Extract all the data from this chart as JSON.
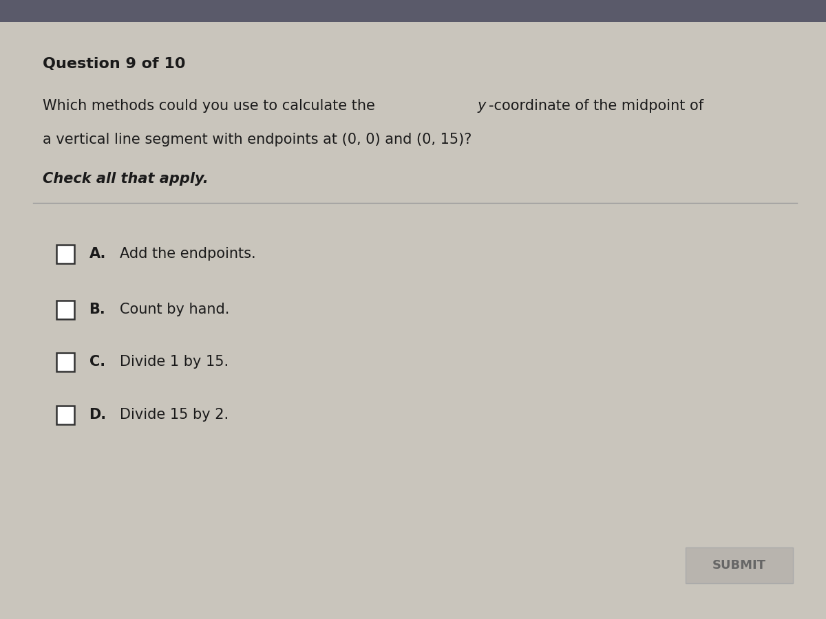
{
  "background_color": "#c9c5bc",
  "top_bar_color": "#5a5a6a",
  "content_bg": "#d4cfc6",
  "title": "Question 9 of 10",
  "question_line1_pre": "Which methods could you use to calculate the ",
  "question_y_word": "y",
  "question_line1_post": "-coordinate of the midpoint of",
  "question_line2": "a vertical line segment with endpoints at (0, 0) and (0, 15)?",
  "instruction": "Check all that apply.",
  "options": [
    {
      "letter": "A.",
      "text": "Add the endpoints."
    },
    {
      "letter": "B.",
      "text": "Count by hand."
    },
    {
      "letter": "C.",
      "text": "Divide 1 by 15."
    },
    {
      "letter": "D.",
      "text": "Divide 15 by 2."
    }
  ],
  "submit_label": "SUBMIT",
  "title_fontsize": 16,
  "question_fontsize": 15,
  "instruction_fontsize": 15,
  "option_fontsize": 15,
  "submit_fontsize": 13,
  "text_color": "#1a1a1a",
  "submit_bg": "#b8b4ae",
  "submit_text_color": "#666666",
  "separator_color": "#999999",
  "checkbox_edge_color": "#333333"
}
